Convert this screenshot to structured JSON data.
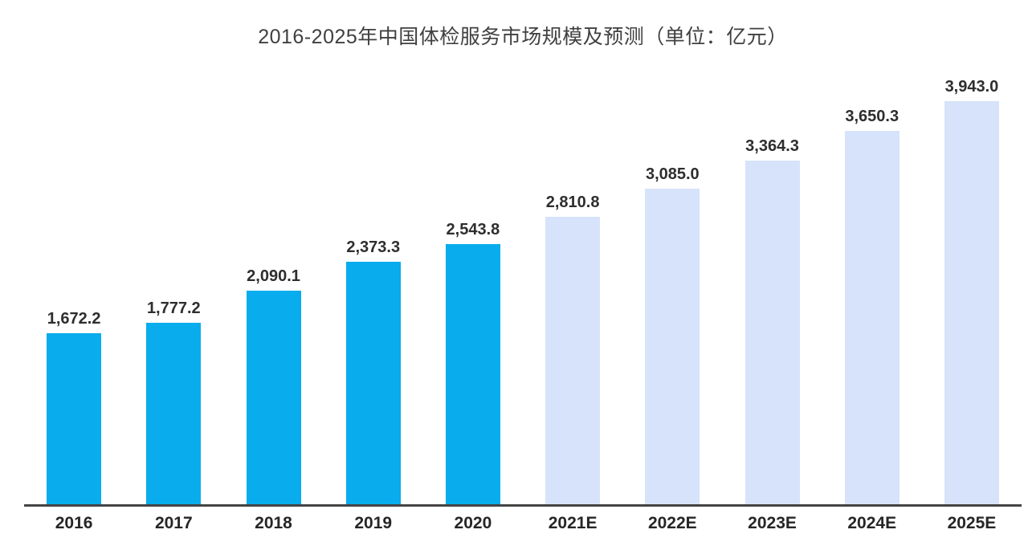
{
  "title": "2016-2025年中国体检服务市场规模及预测（单位：亿元）",
  "chart_data": {
    "type": "bar",
    "title": "2016-2025年中国体检服务市场规模及预测（单位：亿元）",
    "unit": "亿元",
    "categories": [
      "2016",
      "2017",
      "2018",
      "2019",
      "2020",
      "2021E",
      "2022E",
      "2023E",
      "2024E",
      "2025E"
    ],
    "values": [
      1672.2,
      1777.2,
      2090.1,
      2373.3,
      2543.8,
      2810.8,
      3085.0,
      3364.3,
      3650.3,
      3943.0
    ],
    "value_labels": [
      "1,672.2",
      "1,777.2",
      "2,090.1",
      "2,373.3",
      "2,543.8",
      "2,810.8",
      "3,085.0",
      "3,364.3",
      "3,650.3",
      "3,943.0"
    ],
    "forecast_start_index": 5,
    "colors": {
      "actual_bar": "#09ACEC",
      "forecast_bar": "#D7E3FA",
      "axis_line": "#444444",
      "label_text": "#2e2e2e",
      "title_text": "#404040"
    },
    "xlabel": "",
    "ylabel": "",
    "ylim": [
      0,
      4200
    ],
    "grid": false,
    "legend": "none",
    "data_labels": "above-bars"
  }
}
